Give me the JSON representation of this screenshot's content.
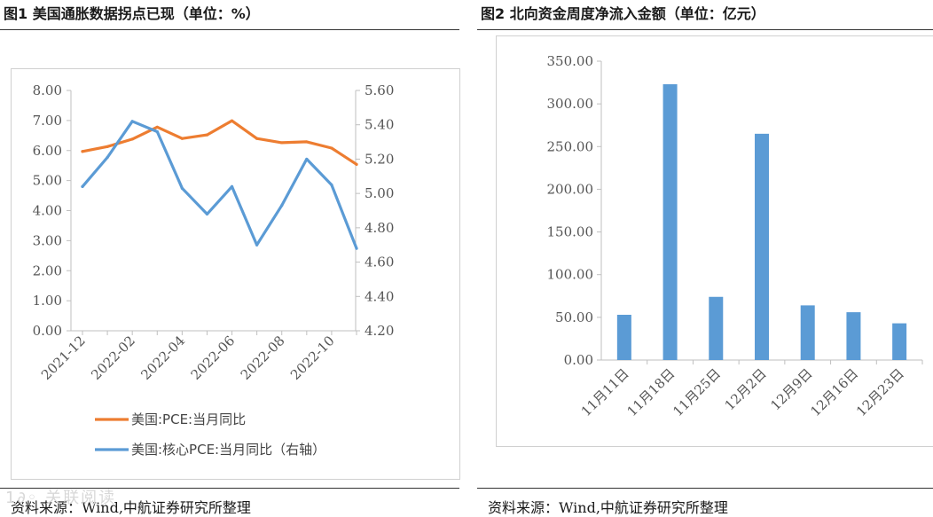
{
  "left": {
    "title": "图1  美国通胀数据拐点已现（单位：%）",
    "source": "资料来源：Wind,中航证券研究所整理"
  },
  "right": {
    "title": "图2  北向资金周度净流入金额（单位：亿元）",
    "source": "资料来源：Wind,中航证券研究所整理"
  },
  "watermark": "1∂◦ 关联阅读",
  "colors": {
    "orange": "#ED7D31",
    "blue": "#5B9BD5",
    "bar": "#5B9BD5"
  },
  "chart_data": [
    {
      "type": "line",
      "title": "",
      "x": [
        "2021-12",
        "2022-01",
        "2022-02",
        "2022-03",
        "2022-04",
        "2022-05",
        "2022-06",
        "2022-07",
        "2022-08",
        "2022-09",
        "2022-10",
        "2022-11"
      ],
      "x_tick_labels": [
        "2021-12",
        "2022-02",
        "2022-04",
        "2022-06",
        "2022-08",
        "2022-10"
      ],
      "y_left": {
        "ylim": [
          0,
          8
        ],
        "ticks": [
          "0.00",
          "1.00",
          "2.00",
          "3.00",
          "4.00",
          "5.00",
          "6.00",
          "7.00",
          "8.00"
        ]
      },
      "y_right": {
        "ylim": [
          4.2,
          5.6
        ],
        "ticks": [
          "4.20",
          "4.40",
          "4.60",
          "4.80",
          "5.00",
          "5.20",
          "5.40",
          "5.60"
        ]
      },
      "grid": false,
      "legend_position": "bottom",
      "series": [
        {
          "name": "美国:PCE:当月同比",
          "axis": "left",
          "color": "#ED7D31",
          "values": [
            5.97,
            6.13,
            6.38,
            6.78,
            6.4,
            6.52,
            6.99,
            6.4,
            6.26,
            6.29,
            6.08,
            5.54
          ]
        },
        {
          "name": "美国:核心PCE:当月同比（右轴）",
          "axis": "right",
          "color": "#5B9BD5",
          "values": [
            5.04,
            5.21,
            5.42,
            5.36,
            5.03,
            4.88,
            5.04,
            4.7,
            4.93,
            5.2,
            5.05,
            4.68
          ]
        }
      ]
    },
    {
      "type": "bar",
      "title": "",
      "categories": [
        "11月11日",
        "11月18日",
        "11月25日",
        "12月2日",
        "12月9日",
        "12月16日",
        "12月23日"
      ],
      "values": [
        53.0,
        323.0,
        74.0,
        265.0,
        64.0,
        56.0,
        43.0
      ],
      "ylim": [
        0,
        350
      ],
      "y_ticks": [
        "0.00",
        "50.00",
        "100.00",
        "150.00",
        "200.00",
        "250.00",
        "300.00",
        "350.00"
      ],
      "grid": false,
      "color": "#5B9BD5"
    }
  ]
}
